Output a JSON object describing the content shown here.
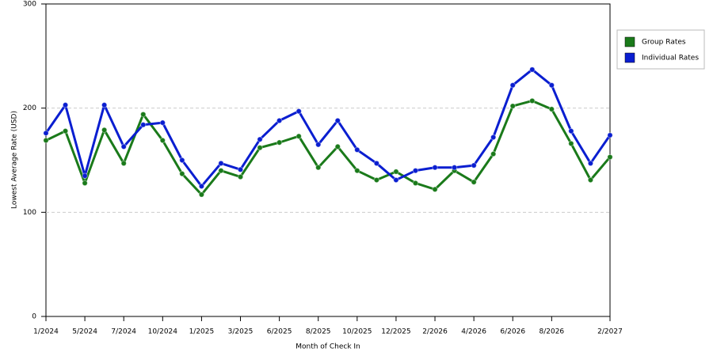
{
  "chart_data": {
    "type": "line",
    "x_label": "Month of Check In",
    "y_label": "Lowest Average Rate (USD)",
    "categories": [
      "1/2024",
      null,
      "5/2024",
      null,
      "7/2024",
      null,
      "10/2024",
      null,
      "1/2025",
      null,
      "3/2025",
      null,
      "6/2025",
      null,
      "8/2025",
      null,
      "10/2025",
      null,
      "12/2025",
      null,
      "2/2026",
      null,
      "4/2026",
      null,
      "6/2026",
      null,
      "8/2026",
      null,
      null,
      "2/2027"
    ],
    "series": [
      {
        "name": "Group Rates",
        "color": "#1a7a1a",
        "values": [
          169,
          178,
          128,
          179,
          147,
          194,
          169,
          137,
          117,
          140,
          134,
          162,
          167,
          173,
          143,
          163,
          140,
          131,
          139,
          128,
          122,
          140,
          129,
          156,
          202,
          207,
          199,
          166,
          131,
          153
        ]
      },
      {
        "name": "Individual Rates",
        "color": "#0a1ed0",
        "values": [
          176,
          203,
          135,
          203,
          163,
          184,
          186,
          150,
          125,
          147,
          141,
          170,
          188,
          197,
          165,
          188,
          160,
          147,
          131,
          140,
          143,
          143,
          145,
          172,
          222,
          237,
          222,
          178,
          147,
          174
        ]
      }
    ],
    "ylim": [
      0,
      300
    ],
    "yticks": [
      0,
      100,
      200,
      300
    ],
    "grid": true
  }
}
